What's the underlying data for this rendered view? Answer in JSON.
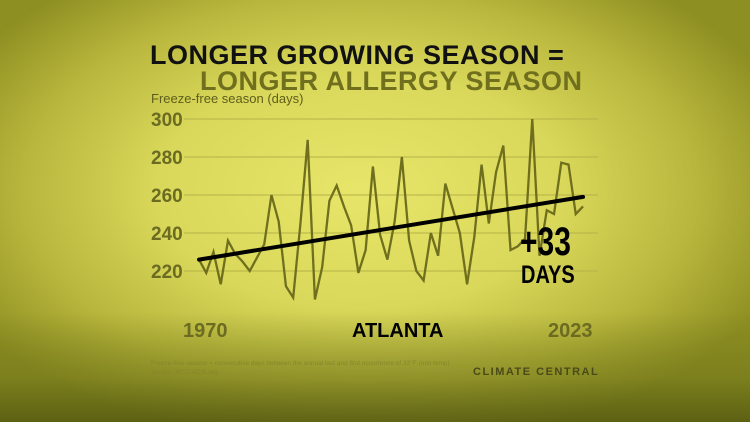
{
  "title_line1": "LONGER GROWING SEASON =",
  "title_line2": "LONGER ALLERGY SEASON",
  "colors": {
    "data_line": "#6f6f1e",
    "trend_line": "#000000",
    "grid": "#b5b347",
    "title2": "#6f6f1e"
  },
  "chart_data": {
    "type": "line",
    "ylabel": "Freeze-free season (days)",
    "ylim": [
      200,
      300
    ],
    "yticks": [
      220,
      240,
      260,
      280,
      300
    ],
    "grid": true,
    "x_labels": [
      "1970",
      "2023"
    ],
    "location": "ATLANTA",
    "x": [
      1970,
      1971,
      1972,
      1973,
      1974,
      1975,
      1976,
      1977,
      1978,
      1979,
      1980,
      1981,
      1982,
      1983,
      1984,
      1985,
      1986,
      1987,
      1988,
      1989,
      1990,
      1991,
      1992,
      1993,
      1994,
      1995,
      1996,
      1997,
      1998,
      1999,
      2000,
      2001,
      2002,
      2003,
      2004,
      2005,
      2006,
      2007,
      2008,
      2009,
      2010,
      2011,
      2012,
      2013,
      2014,
      2015,
      2016,
      2017,
      2018,
      2019,
      2020,
      2021,
      2022,
      2023
    ],
    "values": [
      226,
      219,
      230,
      213,
      236,
      229,
      225,
      220,
      227,
      234,
      260,
      246,
      212,
      206,
      245,
      289,
      205,
      222,
      257,
      265,
      254,
      244,
      219,
      231,
      275,
      239,
      226,
      246,
      280,
      236,
      220,
      215,
      240,
      228,
      266,
      253,
      240,
      213,
      238,
      276,
      245,
      272,
      286,
      231,
      233,
      237,
      300,
      228,
      252,
      250,
      277,
      276,
      250,
      254
    ],
    "trend": {
      "start": 226,
      "end": 259
    },
    "annotation": {
      "value": "+33",
      "unit": "DAYS"
    }
  },
  "footnote": {
    "definition": "Freeze-free season = consecutive days between the annual last and first occurrence of 32°F (min temp)",
    "source": "Source: RCC-ACIS.org"
  },
  "logo": "CLIMATE CENTRAL"
}
